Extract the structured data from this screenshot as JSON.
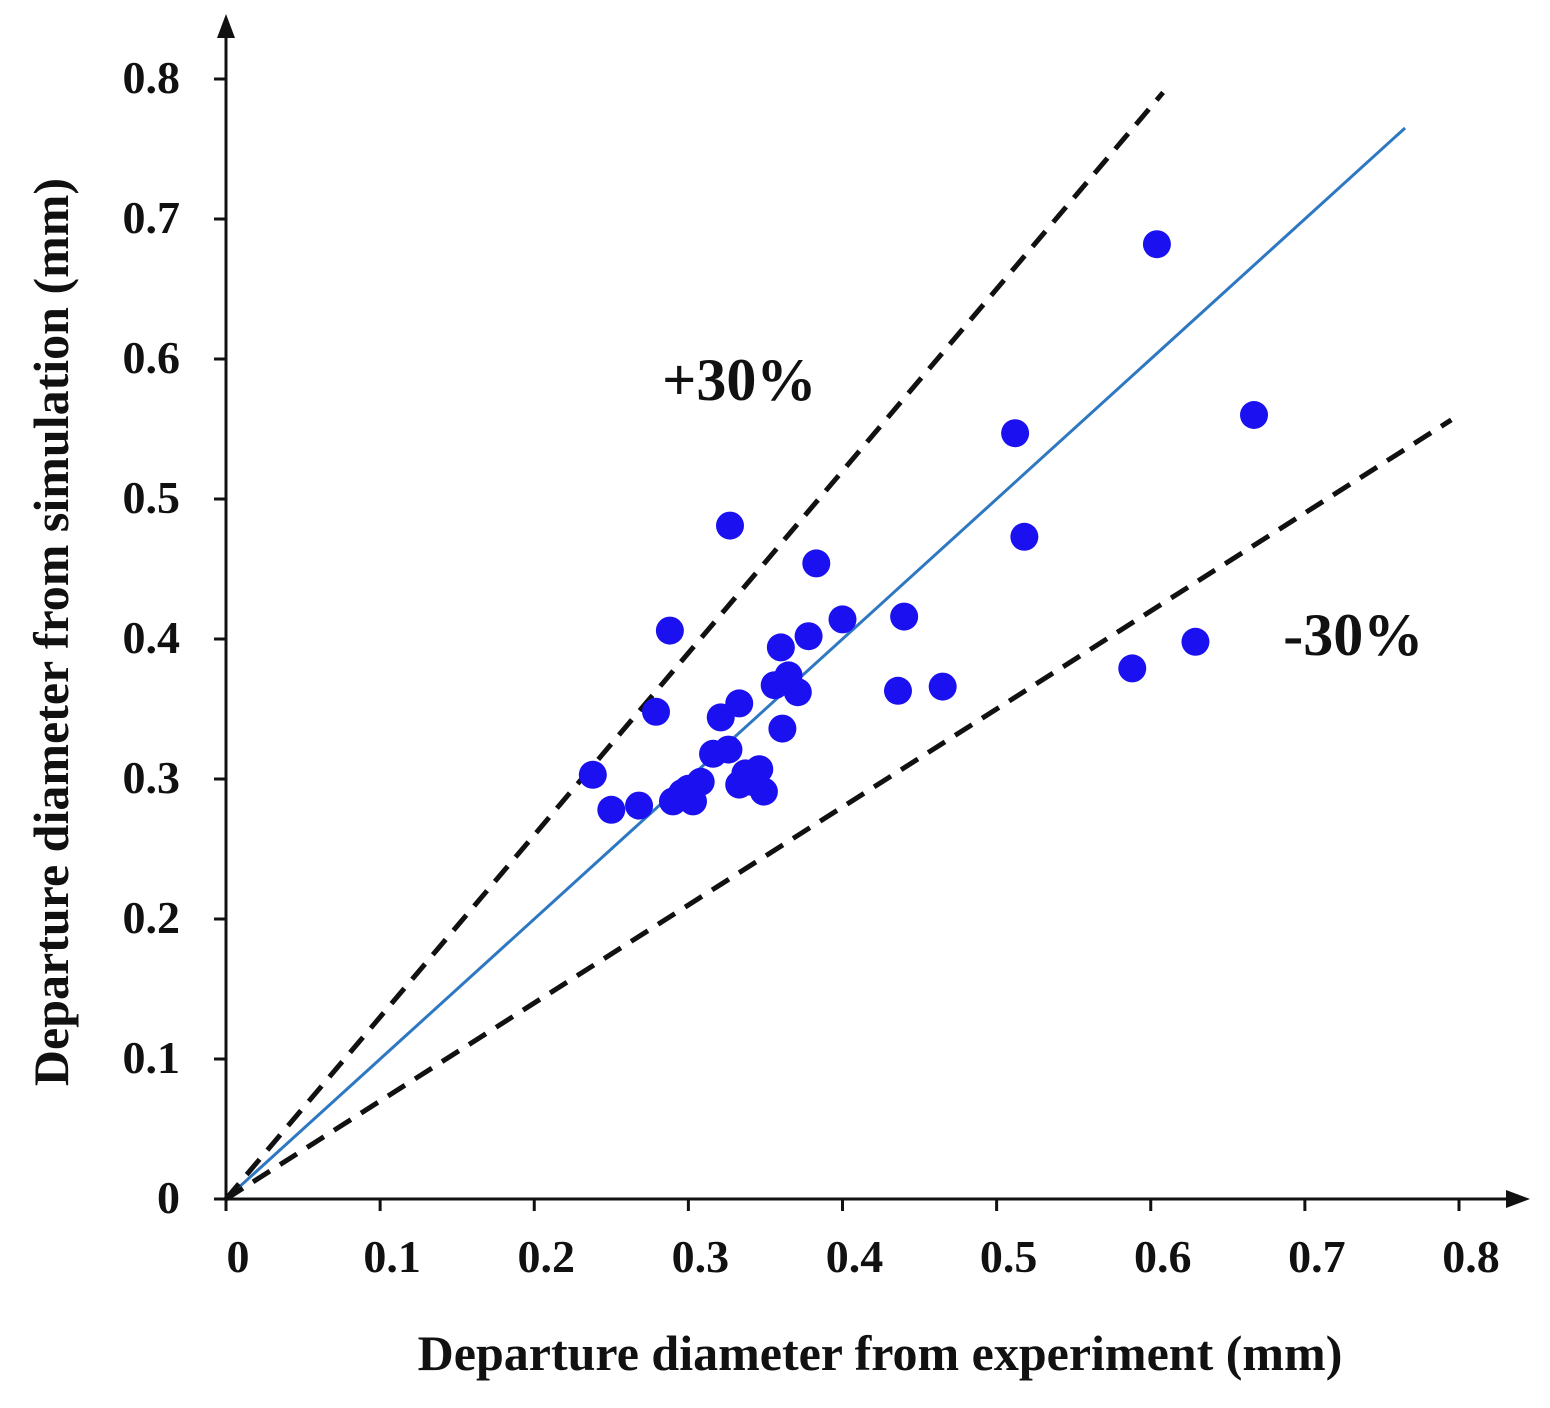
{
  "chart_data": {
    "type": "scatter",
    "title": "",
    "xlabel": "Departure diameter from experiment (mm)",
    "ylabel": "Departure diameter from simulation (mm)",
    "xlim": [
      0,
      0.8
    ],
    "ylim": [
      0,
      0.8
    ],
    "x_ticks": [
      0,
      0.1,
      0.2,
      0.3,
      0.4,
      0.5,
      0.6,
      0.7,
      0.8
    ],
    "y_ticks": [
      0,
      0.1,
      0.2,
      0.3,
      0.4,
      0.5,
      0.6,
      0.7,
      0.8
    ],
    "x_tick_labels": [
      "0",
      "0.1",
      "0.2",
      "0.3",
      "0.4",
      "0.5",
      "0.6",
      "0.7",
      "0.8"
    ],
    "y_tick_labels": [
      "0",
      "0.1",
      "0.2",
      "0.3",
      "0.4",
      "0.5",
      "0.6",
      "0.7",
      "0.8"
    ],
    "grid": false,
    "series": [
      {
        "name": "data",
        "kind": "scatter",
        "color": "#1a10f0",
        "points": [
          [
            0.238,
            0.303
          ],
          [
            0.25,
            0.278
          ],
          [
            0.268,
            0.281
          ],
          [
            0.279,
            0.348
          ],
          [
            0.288,
            0.406
          ],
          [
            0.29,
            0.284
          ],
          [
            0.296,
            0.29
          ],
          [
            0.3,
            0.293
          ],
          [
            0.303,
            0.284
          ],
          [
            0.308,
            0.298
          ],
          [
            0.316,
            0.318
          ],
          [
            0.321,
            0.344
          ],
          [
            0.326,
            0.321
          ],
          [
            0.327,
            0.481
          ],
          [
            0.333,
            0.296
          ],
          [
            0.333,
            0.354
          ],
          [
            0.337,
            0.304
          ],
          [
            0.341,
            0.298
          ],
          [
            0.346,
            0.307
          ],
          [
            0.349,
            0.291
          ],
          [
            0.356,
            0.367
          ],
          [
            0.36,
            0.394
          ],
          [
            0.361,
            0.336
          ],
          [
            0.365,
            0.374
          ],
          [
            0.371,
            0.362
          ],
          [
            0.378,
            0.402
          ],
          [
            0.383,
            0.454
          ],
          [
            0.4,
            0.414
          ],
          [
            0.436,
            0.363
          ],
          [
            0.44,
            0.416
          ],
          [
            0.465,
            0.366
          ],
          [
            0.512,
            0.547
          ],
          [
            0.518,
            0.473
          ],
          [
            0.588,
            0.379
          ],
          [
            0.604,
            0.682
          ],
          [
            0.629,
            0.398
          ],
          [
            0.667,
            0.56
          ]
        ]
      },
      {
        "name": "y = x",
        "kind": "line",
        "color": "#2e78c2",
        "dash": false,
        "slope": 1.0,
        "x_end": 0.765
      },
      {
        "name": "+30%",
        "kind": "line",
        "color": "#111111",
        "dash": true,
        "slope": 1.3,
        "x_end": 0.608
      },
      {
        "name": "-30%",
        "kind": "line",
        "color": "#111111",
        "dash": true,
        "slope": 0.7,
        "x_end": 0.795
      }
    ],
    "annotations": [
      {
        "text": "+30%",
        "x": 0.283,
        "y": 0.585
      },
      {
        "text": "-30%",
        "x": 0.686,
        "y": 0.403
      }
    ]
  }
}
